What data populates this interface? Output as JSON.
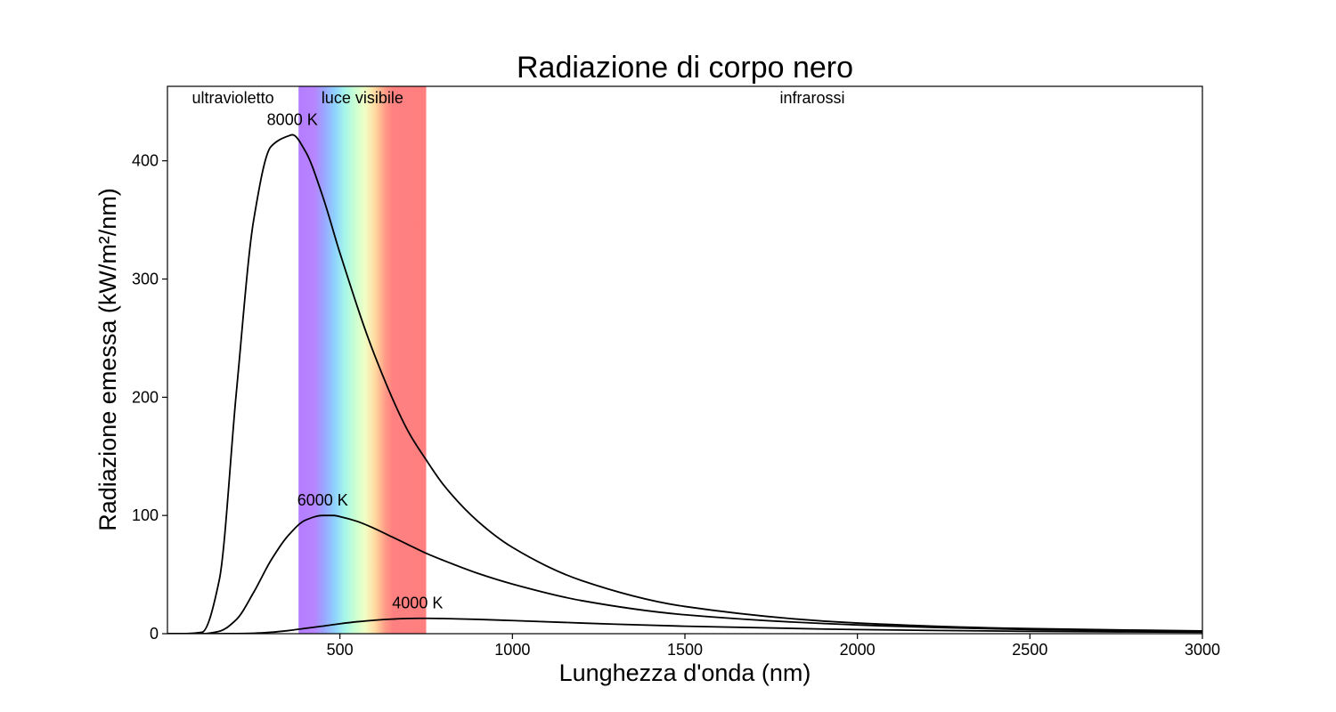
{
  "chart_data": {
    "type": "line",
    "title": "Radiazione di corpo nero",
    "xlabel": "Lunghezza d'onda (nm)",
    "ylabel": "Radiazione emessa (kW/m²/nm)",
    "xlim": [
      0,
      3000
    ],
    "ylim": [
      0,
      463
    ],
    "xticks": [
      500,
      1000,
      1500,
      2000,
      2500,
      3000
    ],
    "yticks": [
      0,
      100,
      200,
      300,
      400
    ],
    "grid": false,
    "regions": [
      {
        "label": "ultravioletto",
        "from": 0,
        "to": 380
      },
      {
        "label": "luce visibile",
        "from": 380,
        "to": 750
      },
      {
        "label": "infrarossi",
        "from": 750,
        "to": 3000
      }
    ],
    "series": [
      {
        "name": "8000 K",
        "x": [
          50,
          100,
          150,
          200,
          250,
          300,
          350,
          362,
          400,
          450,
          500,
          600,
          700,
          750,
          800,
          900,
          1000,
          1200,
          1500,
          2000,
          2500,
          3000
        ],
        "values": [
          0,
          1.2,
          45,
          205,
          350,
          412,
          421,
          422,
          408,
          370,
          322,
          236,
          170,
          147,
          126,
          95,
          73,
          45,
          23,
          9,
          4.3,
          2.3
        ]
      },
      {
        "name": "6000 K",
        "x": [
          50,
          100,
          150,
          200,
          250,
          300,
          350,
          400,
          450,
          483,
          500,
          550,
          600,
          650,
          700,
          750,
          800,
          900,
          1000,
          1200,
          1500,
          2000,
          2500,
          3000
        ],
        "values": [
          0,
          0,
          2,
          12,
          35,
          62,
          83,
          96,
          100,
          100,
          99,
          95,
          89,
          82,
          75,
          68,
          62,
          51,
          42,
          28,
          16,
          7.4,
          3.5,
          1.8
        ]
      },
      {
        "name": "4000 K",
        "x": [
          50,
          150,
          200,
          250,
          300,
          350,
          400,
          450,
          500,
          550,
          600,
          650,
          700,
          725,
          750,
          800,
          900,
          1000,
          1200,
          1500,
          2000,
          2500,
          3000
        ],
        "values": [
          0,
          0,
          0.1,
          0.4,
          1.2,
          2.6,
          4.5,
          6.4,
          8.4,
          10.1,
          11.4,
          12.3,
          12.9,
          13.0,
          13.0,
          12.8,
          12.1,
          11.1,
          9.0,
          6.3,
          3.5,
          2.0,
          1.2
        ]
      }
    ]
  }
}
